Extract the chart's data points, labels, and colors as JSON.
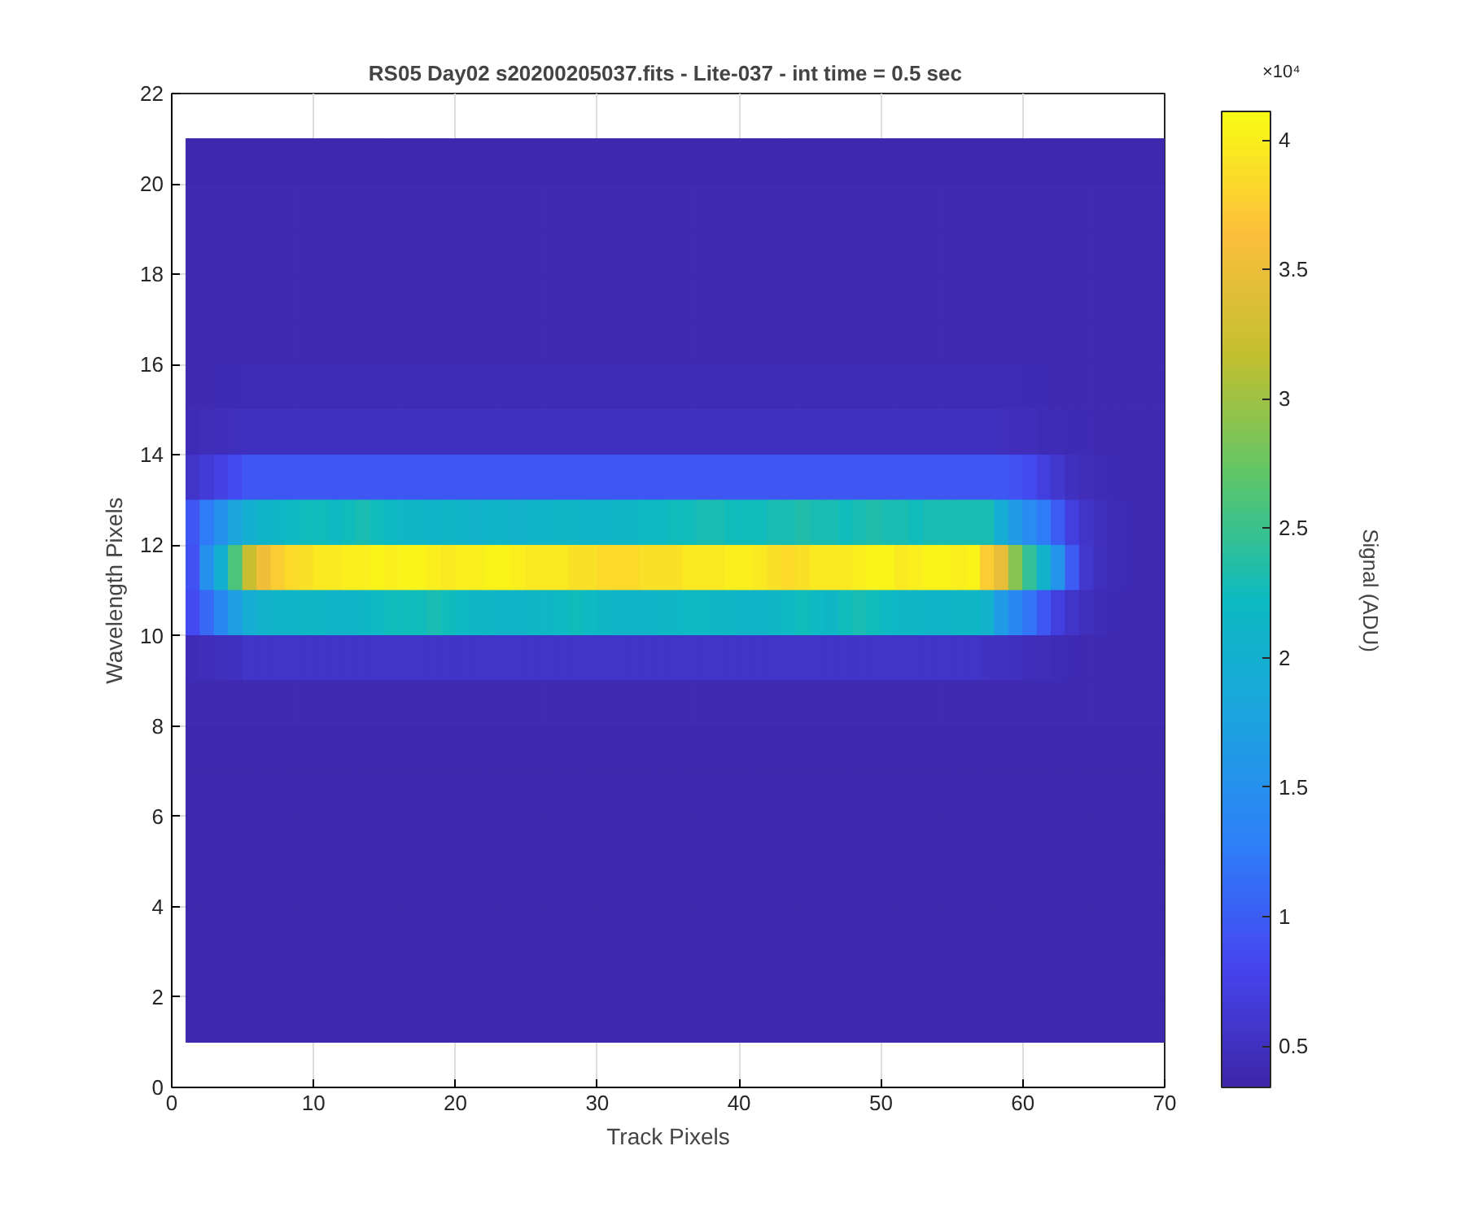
{
  "chart_data": {
    "type": "heatmap",
    "title": "RS05 Day02  s20200205037.fits - Lite-037 - int time = 0.5 sec",
    "xlabel": "Track Pixels",
    "ylabel": "Wavelength Pixels",
    "clabel": "Signal (ADU)",
    "annotations": [
      "×10⁴"
    ],
    "x": [
      1.5,
      2.5,
      3.5,
      4.5,
      5.5,
      6.5,
      7.5,
      8.5,
      9.5,
      10.5,
      11.5,
      12.5,
      13.5,
      14.5,
      15.5,
      16.5,
      17.5,
      18.5,
      19.5,
      20.5,
      21.5,
      22.5,
      23.5,
      24.5,
      25.5,
      26.5,
      27.5,
      28.5,
      29.5,
      30.5,
      31.5,
      32.5,
      33.5,
      34.5,
      35.5,
      36.5,
      37.5,
      38.5,
      39.5,
      40.5,
      41.5,
      42.5,
      43.5,
      44.5,
      45.5,
      46.5,
      47.5,
      48.5,
      49.5,
      50.5,
      51.5,
      52.5,
      53.5,
      54.5,
      55.5,
      56.5,
      57.5,
      58.5,
      59.5,
      60.5,
      61.5,
      62.5,
      63.5,
      64.5,
      65.5,
      66.5,
      67.5,
      68.5,
      69.5
    ],
    "y": [
      20.5,
      19.5,
      18.5,
      17.5,
      16.5,
      15.5,
      14.5,
      13.5,
      12.5,
      11.5,
      10.5,
      9.5,
      8.5,
      7.5,
      6.5,
      5.5,
      4.5,
      3.5,
      2.5,
      1.5
    ],
    "cells": [
      [
        0.38,
        0.38,
        0.38,
        0.38,
        0.38,
        0.38,
        0.38,
        0.38,
        0.38,
        0.38,
        0.38,
        0.38,
        0.38,
        0.38,
        0.38,
        0.38,
        0.38,
        0.38,
        0.38,
        0.38,
        0.38,
        0.38,
        0.38,
        0.38,
        0.38,
        0.38,
        0.38,
        0.38,
        0.38,
        0.38,
        0.38,
        0.38,
        0.38,
        0.38,
        0.38,
        0.38,
        0.38,
        0.38,
        0.38,
        0.38,
        0.38,
        0.38,
        0.38,
        0.38,
        0.38,
        0.38,
        0.38,
        0.38,
        0.38,
        0.38,
        0.38,
        0.38,
        0.38,
        0.38,
        0.38,
        0.38,
        0.38,
        0.38,
        0.38,
        0.38,
        0.38,
        0.38,
        0.38,
        0.38,
        0.38,
        0.38,
        0.38,
        0.38,
        0.38
      ],
      [
        0.4,
        0.4,
        0.4,
        0.4,
        0.4,
        0.4,
        0.4,
        0.4,
        0.4,
        0.4,
        0.4,
        0.4,
        0.4,
        0.4,
        0.4,
        0.4,
        0.4,
        0.4,
        0.4,
        0.4,
        0.4,
        0.4,
        0.4,
        0.4,
        0.4,
        0.4,
        0.4,
        0.4,
        0.4,
        0.4,
        0.4,
        0.4,
        0.4,
        0.4,
        0.4,
        0.4,
        0.4,
        0.4,
        0.4,
        0.4,
        0.4,
        0.4,
        0.4,
        0.4,
        0.4,
        0.4,
        0.4,
        0.4,
        0.4,
        0.4,
        0.4,
        0.4,
        0.4,
        0.4,
        0.4,
        0.4,
        0.4,
        0.4,
        0.4,
        0.4,
        0.4,
        0.4,
        0.4,
        0.4,
        0.4,
        0.4,
        0.4,
        0.4,
        0.4
      ],
      [
        0.4,
        0.4,
        0.4,
        0.4,
        0.4,
        0.4,
        0.4,
        0.4,
        0.4,
        0.4,
        0.4,
        0.4,
        0.4,
        0.4,
        0.4,
        0.4,
        0.4,
        0.4,
        0.4,
        0.4,
        0.4,
        0.4,
        0.4,
        0.4,
        0.4,
        0.4,
        0.4,
        0.4,
        0.4,
        0.4,
        0.4,
        0.4,
        0.4,
        0.4,
        0.4,
        0.4,
        0.4,
        0.4,
        0.4,
        0.4,
        0.4,
        0.4,
        0.4,
        0.4,
        0.4,
        0.4,
        0.4,
        0.4,
        0.4,
        0.4,
        0.4,
        0.4,
        0.4,
        0.4,
        0.4,
        0.4,
        0.4,
        0.4,
        0.4,
        0.4,
        0.4,
        0.4,
        0.4,
        0.4,
        0.4,
        0.4,
        0.4,
        0.4,
        0.4
      ],
      [
        0.4,
        0.4,
        0.4,
        0.4,
        0.4,
        0.4,
        0.4,
        0.4,
        0.4,
        0.4,
        0.4,
        0.4,
        0.4,
        0.4,
        0.4,
        0.4,
        0.4,
        0.4,
        0.4,
        0.4,
        0.4,
        0.4,
        0.4,
        0.4,
        0.4,
        0.4,
        0.4,
        0.4,
        0.4,
        0.4,
        0.4,
        0.4,
        0.4,
        0.4,
        0.4,
        0.4,
        0.4,
        0.4,
        0.4,
        0.4,
        0.4,
        0.4,
        0.4,
        0.4,
        0.4,
        0.4,
        0.4,
        0.4,
        0.4,
        0.4,
        0.4,
        0.4,
        0.4,
        0.4,
        0.4,
        0.4,
        0.4,
        0.4,
        0.4,
        0.4,
        0.4,
        0.4,
        0.4,
        0.4,
        0.4,
        0.4,
        0.4,
        0.4,
        0.4
      ],
      [
        0.4,
        0.4,
        0.4,
        0.4,
        0.4,
        0.4,
        0.4,
        0.4,
        0.4,
        0.4,
        0.4,
        0.4,
        0.4,
        0.4,
        0.4,
        0.4,
        0.4,
        0.4,
        0.4,
        0.4,
        0.4,
        0.4,
        0.4,
        0.4,
        0.4,
        0.4,
        0.4,
        0.4,
        0.4,
        0.4,
        0.4,
        0.4,
        0.4,
        0.4,
        0.4,
        0.4,
        0.4,
        0.4,
        0.4,
        0.4,
        0.4,
        0.4,
        0.4,
        0.4,
        0.4,
        0.4,
        0.4,
        0.4,
        0.4,
        0.4,
        0.4,
        0.4,
        0.4,
        0.4,
        0.4,
        0.4,
        0.4,
        0.4,
        0.4,
        0.4,
        0.4,
        0.4,
        0.4,
        0.4,
        0.4,
        0.4,
        0.4,
        0.4,
        0.4
      ],
      [
        0.4,
        0.41,
        0.42,
        0.42,
        0.43,
        0.43,
        0.43,
        0.43,
        0.43,
        0.43,
        0.43,
        0.43,
        0.43,
        0.43,
        0.43,
        0.43,
        0.43,
        0.43,
        0.43,
        0.43,
        0.43,
        0.43,
        0.43,
        0.43,
        0.43,
        0.43,
        0.43,
        0.43,
        0.43,
        0.43,
        0.43,
        0.43,
        0.43,
        0.43,
        0.43,
        0.43,
        0.43,
        0.43,
        0.43,
        0.43,
        0.43,
        0.43,
        0.43,
        0.43,
        0.43,
        0.43,
        0.43,
        0.43,
        0.43,
        0.43,
        0.43,
        0.43,
        0.43,
        0.43,
        0.43,
        0.43,
        0.43,
        0.43,
        0.43,
        0.42,
        0.42,
        0.41,
        0.41,
        0.4,
        0.4,
        0.4,
        0.4,
        0.4,
        0.4
      ],
      [
        0.43,
        0.45,
        0.47,
        0.48,
        0.5,
        0.5,
        0.5,
        0.5,
        0.5,
        0.5,
        0.5,
        0.5,
        0.5,
        0.5,
        0.5,
        0.5,
        0.5,
        0.5,
        0.5,
        0.5,
        0.5,
        0.5,
        0.5,
        0.5,
        0.5,
        0.5,
        0.5,
        0.5,
        0.5,
        0.5,
        0.5,
        0.5,
        0.5,
        0.5,
        0.5,
        0.5,
        0.5,
        0.5,
        0.5,
        0.5,
        0.5,
        0.5,
        0.5,
        0.5,
        0.5,
        0.5,
        0.5,
        0.5,
        0.5,
        0.5,
        0.5,
        0.5,
        0.5,
        0.5,
        0.5,
        0.5,
        0.49,
        0.48,
        0.47,
        0.46,
        0.44,
        0.43,
        0.42,
        0.42,
        0.41,
        0.41,
        0.4,
        0.4,
        0.4
      ],
      [
        0.55,
        0.65,
        0.75,
        0.85,
        0.95,
        0.95,
        0.95,
        0.95,
        0.95,
        0.95,
        0.95,
        0.95,
        0.95,
        0.95,
        0.95,
        0.95,
        0.95,
        0.95,
        0.95,
        0.95,
        0.95,
        0.95,
        0.95,
        0.95,
        0.95,
        0.95,
        0.95,
        0.95,
        0.95,
        0.95,
        0.95,
        0.95,
        0.95,
        0.95,
        0.95,
        0.95,
        0.95,
        0.95,
        0.95,
        0.95,
        0.95,
        0.95,
        0.95,
        0.95,
        0.95,
        0.95,
        0.95,
        0.95,
        0.95,
        0.95,
        0.95,
        0.95,
        0.95,
        0.95,
        0.95,
        0.95,
        0.95,
        0.95,
        0.9,
        0.85,
        0.7,
        0.6,
        0.5,
        0.45,
        0.43,
        0.42,
        0.41,
        0.4,
        0.4
      ],
      [
        0.95,
        1.25,
        1.5,
        1.8,
        2,
        2.1,
        2.15,
        2.2,
        2.25,
        2.25,
        2.2,
        2.25,
        2.3,
        2.25,
        2.2,
        2.15,
        2.15,
        2.1,
        2.15,
        2.1,
        2.05,
        2.1,
        2.1,
        2.05,
        2.1,
        2.1,
        2.15,
        2.15,
        2.1,
        2.1,
        2.15,
        2.15,
        2.2,
        2.2,
        2.25,
        2.25,
        2.3,
        2.3,
        2.25,
        2.25,
        2.25,
        2.3,
        2.3,
        2.35,
        2.3,
        2.3,
        2.25,
        2.3,
        2.35,
        2.3,
        2.3,
        2.25,
        2.3,
        2.3,
        2.3,
        2.3,
        2.3,
        1.95,
        1.65,
        1.45,
        1.25,
        1,
        0.7,
        0.55,
        0.48,
        0.43,
        0.42,
        0.41,
        0.4
      ],
      [
        0.9,
        1.5,
        2,
        2.6,
        3.2,
        3.55,
        3.75,
        3.85,
        3.9,
        3.95,
        3.95,
        4,
        4,
        4.05,
        4,
        4.05,
        4.05,
        4,
        3.95,
        4,
        4,
        4.05,
        4.05,
        4,
        3.95,
        3.95,
        3.95,
        3.9,
        3.9,
        3.85,
        3.85,
        3.85,
        3.9,
        3.9,
        3.9,
        3.95,
        3.95,
        3.95,
        4,
        4,
        3.95,
        3.9,
        3.85,
        3.9,
        3.95,
        3.95,
        3.95,
        4,
        4.05,
        4.05,
        3.95,
        4,
        4.05,
        4.05,
        4,
        4.05,
        3.75,
        3.45,
        2.9,
        2.45,
        2.05,
        1.55,
        1,
        0.6,
        0.48,
        0.43,
        0.42,
        0.41,
        0.4
      ],
      [
        0.85,
        1.1,
        1.4,
        1.7,
        1.95,
        2.05,
        2.1,
        2.1,
        2.15,
        2.15,
        2.1,
        2.1,
        2.15,
        2.2,
        2.25,
        2.25,
        2.25,
        2.3,
        2.25,
        2.2,
        2.15,
        2.15,
        2.1,
        2.1,
        2.15,
        2.15,
        2.2,
        2.25,
        2.2,
        2.15,
        2.1,
        2.1,
        2.1,
        2.15,
        2.15,
        2.2,
        2.2,
        2.15,
        2.15,
        2.1,
        2.1,
        2.15,
        2.2,
        2.25,
        2.2,
        2.15,
        2.25,
        2.3,
        2.25,
        2.2,
        2.15,
        2.15,
        2.1,
        2.1,
        2.15,
        2.15,
        2.05,
        1.65,
        1.4,
        1.2,
        0.95,
        0.7,
        0.55,
        0.48,
        0.43,
        0.42,
        0.41,
        0.4,
        0.4
      ],
      [
        0.43,
        0.46,
        0.48,
        0.5,
        0.55,
        0.55,
        0.55,
        0.55,
        0.55,
        0.55,
        0.55,
        0.55,
        0.55,
        0.55,
        0.55,
        0.55,
        0.55,
        0.55,
        0.55,
        0.55,
        0.55,
        0.55,
        0.55,
        0.55,
        0.55,
        0.55,
        0.55,
        0.55,
        0.55,
        0.55,
        0.55,
        0.55,
        0.55,
        0.55,
        0.55,
        0.55,
        0.55,
        0.55,
        0.55,
        0.55,
        0.55,
        0.55,
        0.55,
        0.55,
        0.55,
        0.55,
        0.55,
        0.55,
        0.55,
        0.55,
        0.55,
        0.55,
        0.55,
        0.55,
        0.55,
        0.55,
        0.53,
        0.51,
        0.49,
        0.47,
        0.45,
        0.43,
        0.42,
        0.41,
        0.4,
        0.4,
        0.4,
        0.4,
        0.4
      ],
      [
        0.4,
        0.4,
        0.4,
        0.4,
        0.4,
        0.4,
        0.4,
        0.4,
        0.4,
        0.4,
        0.4,
        0.4,
        0.4,
        0.4,
        0.4,
        0.4,
        0.4,
        0.4,
        0.4,
        0.4,
        0.4,
        0.4,
        0.4,
        0.4,
        0.4,
        0.4,
        0.4,
        0.4,
        0.4,
        0.4,
        0.4,
        0.4,
        0.4,
        0.4,
        0.4,
        0.4,
        0.4,
        0.4,
        0.4,
        0.4,
        0.4,
        0.4,
        0.4,
        0.4,
        0.4,
        0.4,
        0.4,
        0.4,
        0.4,
        0.4,
        0.4,
        0.4,
        0.4,
        0.4,
        0.4,
        0.4,
        0.4,
        0.4,
        0.4,
        0.4,
        0.4,
        0.4,
        0.4,
        0.4,
        0.4,
        0.4,
        0.4,
        0.4,
        0.4
      ],
      [
        0.38,
        0.38,
        0.38,
        0.38,
        0.38,
        0.38,
        0.38,
        0.38,
        0.38,
        0.38,
        0.38,
        0.38,
        0.38,
        0.38,
        0.38,
        0.38,
        0.38,
        0.38,
        0.38,
        0.38,
        0.38,
        0.38,
        0.38,
        0.38,
        0.38,
        0.38,
        0.38,
        0.38,
        0.38,
        0.38,
        0.38,
        0.38,
        0.38,
        0.38,
        0.38,
        0.38,
        0.38,
        0.38,
        0.38,
        0.38,
        0.38,
        0.38,
        0.38,
        0.38,
        0.38,
        0.38,
        0.38,
        0.38,
        0.38,
        0.38,
        0.38,
        0.38,
        0.38,
        0.38,
        0.38,
        0.38,
        0.38,
        0.38,
        0.38,
        0.38,
        0.38,
        0.38,
        0.38,
        0.38,
        0.38,
        0.38,
        0.38,
        0.38,
        0.38
      ],
      [
        0.38,
        0.38,
        0.38,
        0.38,
        0.38,
        0.38,
        0.38,
        0.38,
        0.38,
        0.38,
        0.38,
        0.38,
        0.38,
        0.38,
        0.38,
        0.38,
        0.38,
        0.38,
        0.38,
        0.38,
        0.38,
        0.38,
        0.38,
        0.38,
        0.38,
        0.38,
        0.38,
        0.38,
        0.38,
        0.38,
        0.38,
        0.38,
        0.38,
        0.38,
        0.38,
        0.38,
        0.38,
        0.38,
        0.38,
        0.38,
        0.38,
        0.38,
        0.38,
        0.38,
        0.38,
        0.38,
        0.38,
        0.38,
        0.38,
        0.38,
        0.38,
        0.38,
        0.38,
        0.38,
        0.38,
        0.38,
        0.38,
        0.38,
        0.38,
        0.38,
        0.38,
        0.38,
        0.38,
        0.38,
        0.38,
        0.38,
        0.38,
        0.38,
        0.38
      ],
      [
        0.38,
        0.38,
        0.38,
        0.38,
        0.38,
        0.38,
        0.38,
        0.38,
        0.38,
        0.38,
        0.38,
        0.38,
        0.38,
        0.38,
        0.38,
        0.38,
        0.38,
        0.38,
        0.38,
        0.38,
        0.38,
        0.38,
        0.38,
        0.38,
        0.38,
        0.38,
        0.38,
        0.38,
        0.38,
        0.38,
        0.38,
        0.38,
        0.38,
        0.38,
        0.38,
        0.38,
        0.38,
        0.38,
        0.38,
        0.38,
        0.38,
        0.38,
        0.38,
        0.38,
        0.38,
        0.38,
        0.38,
        0.38,
        0.38,
        0.38,
        0.38,
        0.38,
        0.38,
        0.38,
        0.38,
        0.38,
        0.38,
        0.38,
        0.38,
        0.38,
        0.38,
        0.38,
        0.38,
        0.38,
        0.38,
        0.38,
        0.38,
        0.38,
        0.38
      ],
      [
        0.38,
        0.38,
        0.38,
        0.38,
        0.38,
        0.38,
        0.38,
        0.38,
        0.38,
        0.38,
        0.38,
        0.38,
        0.38,
        0.38,
        0.38,
        0.38,
        0.38,
        0.38,
        0.38,
        0.38,
        0.38,
        0.38,
        0.38,
        0.38,
        0.38,
        0.38,
        0.38,
        0.38,
        0.38,
        0.38,
        0.38,
        0.38,
        0.38,
        0.38,
        0.38,
        0.38,
        0.38,
        0.38,
        0.38,
        0.38,
        0.38,
        0.38,
        0.38,
        0.38,
        0.38,
        0.38,
        0.38,
        0.38,
        0.38,
        0.38,
        0.38,
        0.38,
        0.38,
        0.38,
        0.38,
        0.38,
        0.38,
        0.38,
        0.38,
        0.38,
        0.38,
        0.38,
        0.38,
        0.38,
        0.38,
        0.38,
        0.38,
        0.38,
        0.38
      ],
      [
        0.38,
        0.38,
        0.38,
        0.38,
        0.38,
        0.38,
        0.38,
        0.38,
        0.38,
        0.38,
        0.38,
        0.38,
        0.38,
        0.38,
        0.38,
        0.38,
        0.38,
        0.38,
        0.38,
        0.38,
        0.38,
        0.38,
        0.38,
        0.38,
        0.38,
        0.38,
        0.38,
        0.38,
        0.38,
        0.38,
        0.38,
        0.38,
        0.38,
        0.38,
        0.38,
        0.38,
        0.38,
        0.38,
        0.38,
        0.38,
        0.38,
        0.38,
        0.38,
        0.38,
        0.38,
        0.38,
        0.38,
        0.38,
        0.38,
        0.38,
        0.38,
        0.38,
        0.38,
        0.38,
        0.38,
        0.38,
        0.38,
        0.38,
        0.38,
        0.38,
        0.38,
        0.38,
        0.38,
        0.38,
        0.38,
        0.38,
        0.38,
        0.38,
        0.38
      ],
      [
        0.38,
        0.38,
        0.38,
        0.38,
        0.38,
        0.38,
        0.38,
        0.38,
        0.38,
        0.38,
        0.38,
        0.38,
        0.38,
        0.38,
        0.38,
        0.38,
        0.38,
        0.38,
        0.38,
        0.38,
        0.38,
        0.38,
        0.38,
        0.38,
        0.38,
        0.38,
        0.38,
        0.38,
        0.38,
        0.38,
        0.38,
        0.38,
        0.38,
        0.38,
        0.38,
        0.38,
        0.38,
        0.38,
        0.38,
        0.38,
        0.38,
        0.38,
        0.38,
        0.38,
        0.38,
        0.38,
        0.38,
        0.38,
        0.38,
        0.38,
        0.38,
        0.38,
        0.38,
        0.38,
        0.38,
        0.38,
        0.38,
        0.38,
        0.38,
        0.38,
        0.38,
        0.38,
        0.38,
        0.38,
        0.38,
        0.38,
        0.38,
        0.38,
        0.38
      ],
      [
        0.37,
        0.37,
        0.37,
        0.37,
        0.37,
        0.37,
        0.37,
        0.37,
        0.37,
        0.37,
        0.37,
        0.37,
        0.37,
        0.37,
        0.37,
        0.37,
        0.37,
        0.37,
        0.37,
        0.37,
        0.37,
        0.37,
        0.37,
        0.37,
        0.37,
        0.37,
        0.37,
        0.37,
        0.37,
        0.37,
        0.37,
        0.37,
        0.37,
        0.37,
        0.37,
        0.37,
        0.37,
        0.37,
        0.37,
        0.37,
        0.37,
        0.37,
        0.37,
        0.37,
        0.37,
        0.37,
        0.37,
        0.37,
        0.37,
        0.37,
        0.37,
        0.37,
        0.37,
        0.37,
        0.37,
        0.37,
        0.37,
        0.37,
        0.37,
        0.37,
        0.37,
        0.37,
        0.37,
        0.37,
        0.37,
        0.37,
        0.37,
        0.37,
        0.37
      ]
    ],
    "colors": [
      "#3e26a8",
      "#4546f0",
      "#2e80f8",
      "#1ca3e0",
      "#0cbac0",
      "#5cc66a",
      "#c2bf2f",
      "#fcbe3c",
      "#f9fb15"
    ],
    "clim": [
      0.34,
      4.11
    ],
    "cticks": [
      0.5,
      1,
      1.5,
      2,
      2.5,
      3,
      3.5,
      4
    ],
    "xlim": [
      0,
      70
    ],
    "ylim": [
      0,
      22
    ],
    "xticks": [
      0,
      10,
      20,
      30,
      40,
      50,
      60,
      70
    ],
    "yticks": [
      0,
      2,
      4,
      6,
      8,
      10,
      12,
      14,
      16,
      18,
      20,
      22
    ],
    "grid": true
  }
}
